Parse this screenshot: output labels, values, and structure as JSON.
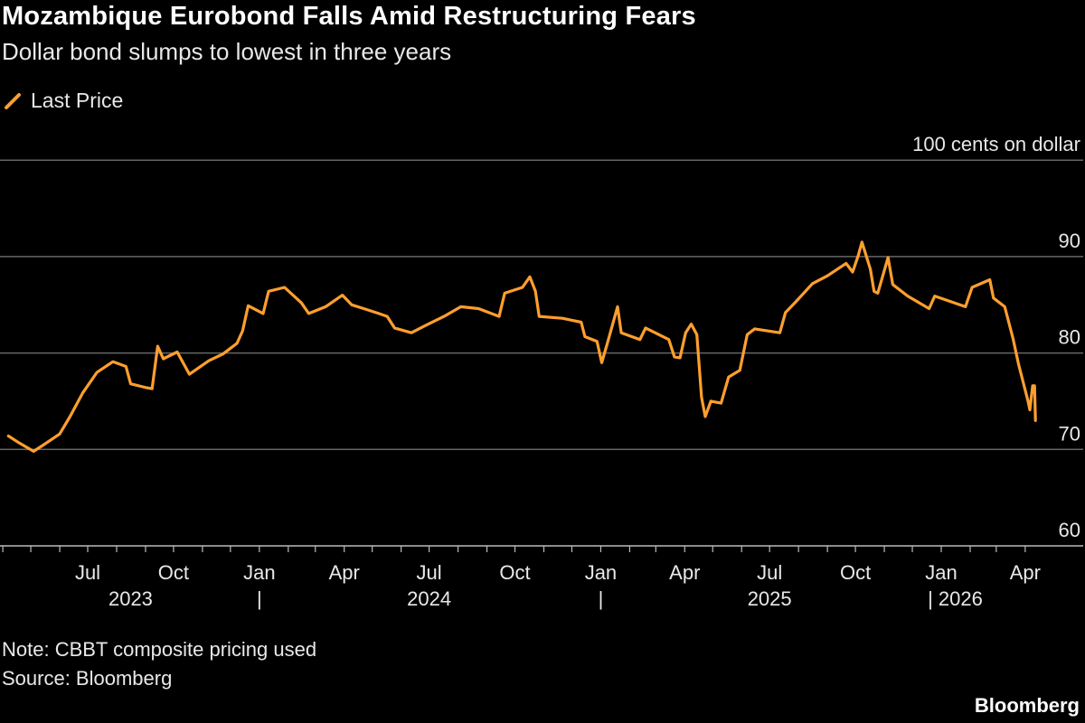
{
  "title": "Mozambique Eurobond Falls Amid Restructuring Fears",
  "subtitle": "Dollar bond slumps to lowest in three years",
  "note": "Note: CBBT composite pricing used",
  "source": "Source: Bloomberg",
  "brand": "Bloomberg",
  "chart_data": {
    "type": "line",
    "title": "Mozambique Eurobond Falls Amid Restructuring Fears",
    "subtitle": "Dollar bond slumps to lowest in three years",
    "ylabel": "100 cents on dollar",
    "ylim": [
      60,
      100
    ],
    "y_ticks": [
      "100 cents on dollar",
      "90",
      "80",
      "70",
      "60"
    ],
    "y_tick_values": [
      100,
      90,
      80,
      70,
      60
    ],
    "x_ticks": [
      {
        "label": "Jul",
        "date": "2023-07-01"
      },
      {
        "label": "Oct",
        "date": "2023-10-01"
      },
      {
        "label": "Jan",
        "date": "2024-01-01"
      },
      {
        "label": "Apr",
        "date": "2024-04-01"
      },
      {
        "label": "Jul",
        "date": "2024-07-01"
      },
      {
        "label": "Oct",
        "date": "2024-10-01"
      },
      {
        "label": "Jan",
        "date": "2025-01-01"
      },
      {
        "label": "Apr",
        "date": "2025-04-01"
      },
      {
        "label": "Jul",
        "date": "2025-07-01"
      },
      {
        "label": "Oct",
        "date": "2025-10-01"
      },
      {
        "label": "Jan",
        "date": "2026-01-01"
      },
      {
        "label": "Apr",
        "date": "2026-04-01"
      }
    ],
    "x_year_labels": [
      {
        "label": "2023",
        "date": "2023-08-16"
      },
      {
        "label": "|",
        "date": "2024-01-01"
      },
      {
        "label": "2024",
        "date": "2024-07-01"
      },
      {
        "label": "|",
        "date": "2025-01-01"
      },
      {
        "label": "2025",
        "date": "2025-07-01"
      },
      {
        "label": "| 2026",
        "date": "2026-01-16"
      }
    ],
    "grid": true,
    "legend_position": "top-left",
    "series": [
      {
        "name": "Last Price",
        "color": "#ff9f2e",
        "points": [
          [
            "2023-04-07",
            71.4
          ],
          [
            "2023-04-18",
            70.7
          ],
          [
            "2023-05-04",
            69.8
          ],
          [
            "2023-05-15",
            70.5
          ],
          [
            "2023-06-01",
            71.6
          ],
          [
            "2023-06-12",
            73.4
          ],
          [
            "2023-06-26",
            75.9
          ],
          [
            "2023-07-11",
            78.0
          ],
          [
            "2023-07-28",
            79.1
          ],
          [
            "2023-08-11",
            78.6
          ],
          [
            "2023-08-16",
            76.8
          ],
          [
            "2023-09-02",
            76.4
          ],
          [
            "2023-09-08",
            76.3
          ],
          [
            "2023-09-14",
            80.7
          ],
          [
            "2023-09-20",
            79.4
          ],
          [
            "2023-10-05",
            80.1
          ],
          [
            "2023-10-18",
            77.8
          ],
          [
            "2023-11-08",
            79.2
          ],
          [
            "2023-11-23",
            79.9
          ],
          [
            "2023-12-08",
            81.0
          ],
          [
            "2023-12-14",
            82.3
          ],
          [
            "2023-12-20",
            84.9
          ],
          [
            "2024-01-05",
            84.1
          ],
          [
            "2024-01-11",
            86.4
          ],
          [
            "2024-01-28",
            86.8
          ],
          [
            "2024-02-15",
            85.2
          ],
          [
            "2024-02-23",
            84.1
          ],
          [
            "2024-03-12",
            84.8
          ],
          [
            "2024-03-30",
            86.0
          ],
          [
            "2024-04-09",
            85.0
          ],
          [
            "2024-04-22",
            84.6
          ],
          [
            "2024-05-08",
            84.1
          ],
          [
            "2024-05-17",
            83.8
          ],
          [
            "2024-05-25",
            82.6
          ],
          [
            "2024-06-12",
            82.1
          ],
          [
            "2024-06-28",
            82.9
          ],
          [
            "2024-07-17",
            83.8
          ],
          [
            "2024-08-04",
            84.8
          ],
          [
            "2024-08-23",
            84.6
          ],
          [
            "2024-09-14",
            83.8
          ],
          [
            "2024-09-20",
            86.2
          ],
          [
            "2024-10-09",
            86.8
          ],
          [
            "2024-10-17",
            87.9
          ],
          [
            "2024-10-23",
            86.4
          ],
          [
            "2024-10-27",
            83.8
          ],
          [
            "2024-11-21",
            83.6
          ],
          [
            "2024-12-11",
            83.2
          ],
          [
            "2024-12-15",
            81.7
          ],
          [
            "2024-12-28",
            81.2
          ],
          [
            "2025-01-02",
            79.0
          ],
          [
            "2025-01-08",
            81.0
          ],
          [
            "2025-01-19",
            84.8
          ],
          [
            "2025-01-23",
            82.1
          ],
          [
            "2025-02-12",
            81.4
          ],
          [
            "2025-02-18",
            82.6
          ],
          [
            "2025-03-15",
            81.4
          ],
          [
            "2025-03-21",
            79.6
          ],
          [
            "2025-03-27",
            79.5
          ],
          [
            "2025-04-02",
            82.1
          ],
          [
            "2025-04-08",
            83.0
          ],
          [
            "2025-04-14",
            81.9
          ],
          [
            "2025-04-19",
            75.4
          ],
          [
            "2025-04-23",
            73.4
          ],
          [
            "2025-04-29",
            75.0
          ],
          [
            "2025-05-10",
            74.8
          ],
          [
            "2025-05-18",
            77.5
          ],
          [
            "2025-05-30",
            78.2
          ],
          [
            "2025-06-07",
            81.9
          ],
          [
            "2025-06-15",
            82.5
          ],
          [
            "2025-07-12",
            82.1
          ],
          [
            "2025-07-18",
            84.2
          ],
          [
            "2025-07-29",
            85.3
          ],
          [
            "2025-08-16",
            87.2
          ],
          [
            "2025-09-01",
            88.0
          ],
          [
            "2025-09-21",
            89.3
          ],
          [
            "2025-09-28",
            88.4
          ],
          [
            "2025-10-04",
            90.1
          ],
          [
            "2025-10-08",
            91.5
          ],
          [
            "2025-10-17",
            88.7
          ],
          [
            "2025-10-21",
            86.4
          ],
          [
            "2025-10-25",
            86.2
          ],
          [
            "2025-11-05",
            89.9
          ],
          [
            "2025-11-10",
            87.1
          ],
          [
            "2025-11-26",
            85.9
          ],
          [
            "2025-12-19",
            84.6
          ],
          [
            "2025-12-25",
            85.9
          ],
          [
            "2026-01-27",
            84.8
          ],
          [
            "2026-02-03",
            86.8
          ],
          [
            "2026-02-22",
            87.6
          ],
          [
            "2026-02-26",
            85.7
          ],
          [
            "2026-03-10",
            84.8
          ],
          [
            "2026-03-19",
            81.5
          ],
          [
            "2026-03-25",
            78.8
          ],
          [
            "2026-04-04",
            75.0
          ],
          [
            "2026-04-06",
            74.1
          ],
          [
            "2026-04-09",
            76.6
          ],
          [
            "2026-04-11",
            76.6
          ],
          [
            "2026-04-12",
            73.0
          ]
        ]
      }
    ]
  }
}
